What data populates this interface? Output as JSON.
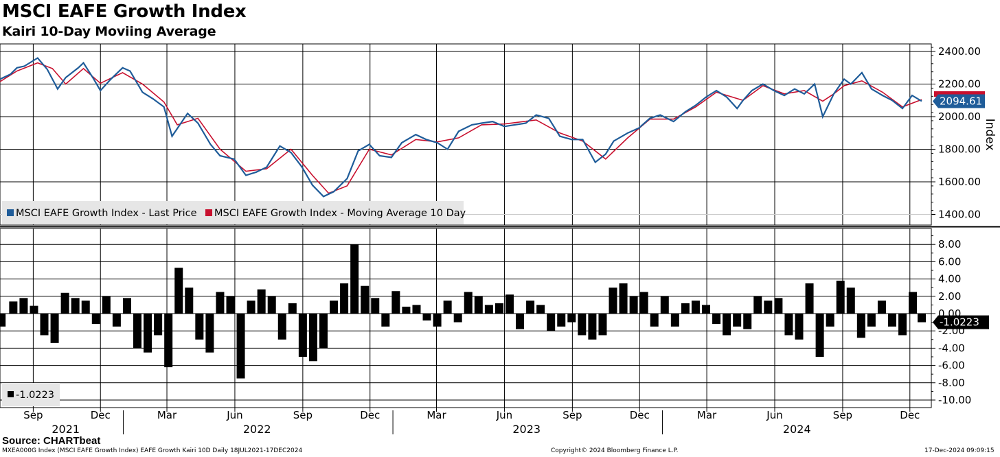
{
  "title": "MSCI EAFE Growth Index",
  "subtitle": "Kairi 10-Day Moviing Average",
  "source": "Source: CHARTbeat",
  "footer": {
    "left": "MXEA000G Index (MSCI EAFE Growth Index) EAFE Growth Kairi 10D  Daily 18JUL2021-17DEC2024",
    "center": "Copyright© 2024 Bloomberg Finance L.P.",
    "right": "17-Dec-2024 09:09:15"
  },
  "colors": {
    "last_price": "#1f5c99",
    "moving_average": "#c8102e",
    "kairi": "#000000",
    "grid": "#000000"
  },
  "chart_data": [
    {
      "type": "line",
      "ylabel": "Index",
      "ylim": [
        1350,
        2450
      ],
      "y_ticks": [
        "2400.00",
        "2200.00",
        "2000.00",
        "1800.00",
        "1600.00",
        "1400.00"
      ],
      "last_value_label": "2094.61",
      "legend_position": "bottom-left",
      "series": [
        {
          "name": "MSCI EAFE Growth Index - Last Price",
          "x": [
            "2021-07-18",
            "2021-08-01",
            "2021-08-10",
            "2021-08-20",
            "2021-09-07",
            "2021-09-20",
            "2021-10-04",
            "2021-10-15",
            "2021-11-01",
            "2021-11-08",
            "2021-11-22",
            "2021-12-01",
            "2021-12-15",
            "2021-12-31",
            "2022-01-10",
            "2022-01-27",
            "2022-02-10",
            "2022-02-25",
            "2022-03-08",
            "2022-03-29",
            "2022-04-12",
            "2022-04-29",
            "2022-05-12",
            "2022-05-31",
            "2022-06-16",
            "2022-06-30",
            "2022-07-14",
            "2022-08-01",
            "2022-08-16",
            "2022-08-31",
            "2022-09-14",
            "2022-09-29",
            "2022-10-13",
            "2022-10-31",
            "2022-11-15",
            "2022-11-30",
            "2022-12-14",
            "2022-12-30",
            "2023-01-13",
            "2023-02-01",
            "2023-02-15",
            "2023-03-02",
            "2023-03-16",
            "2023-03-31",
            "2023-04-18",
            "2023-05-01",
            "2023-05-16",
            "2023-06-01",
            "2023-06-15",
            "2023-06-30",
            "2023-07-14",
            "2023-07-31",
            "2023-08-15",
            "2023-08-31",
            "2023-09-15",
            "2023-10-02",
            "2023-10-16",
            "2023-10-27",
            "2023-11-15",
            "2023-11-30",
            "2023-12-15",
            "2023-12-29",
            "2024-01-16",
            "2024-02-01",
            "2024-02-15",
            "2024-02-29",
            "2024-03-14",
            "2024-03-28",
            "2024-04-11",
            "2024-04-19",
            "2024-05-01",
            "2024-05-16",
            "2024-05-31",
            "2024-06-14",
            "2024-06-28",
            "2024-07-11",
            "2024-07-25",
            "2024-08-05",
            "2024-08-20",
            "2024-09-03",
            "2024-09-12",
            "2024-09-27",
            "2024-10-10",
            "2024-10-25",
            "2024-11-07",
            "2024-11-21",
            "2024-12-04",
            "2024-12-17"
          ],
          "values": [
            2230,
            2260,
            2300,
            2310,
            2360,
            2290,
            2170,
            2240,
            2300,
            2330,
            2230,
            2160,
            2230,
            2300,
            2280,
            2150,
            2110,
            2060,
            1880,
            2020,
            1960,
            1830,
            1760,
            1740,
            1640,
            1660,
            1690,
            1820,
            1780,
            1690,
            1580,
            1510,
            1540,
            1620,
            1790,
            1830,
            1760,
            1750,
            1840,
            1890,
            1860,
            1840,
            1800,
            1910,
            1950,
            1960,
            1970,
            1940,
            1950,
            1960,
            2010,
            1990,
            1880,
            1860,
            1860,
            1720,
            1770,
            1850,
            1900,
            1930,
            1990,
            2010,
            1970,
            2030,
            2070,
            2120,
            2160,
            2120,
            2050,
            2100,
            2160,
            2200,
            2160,
            2130,
            2170,
            2140,
            2200,
            2000,
            2140,
            2230,
            2200,
            2270,
            2170,
            2130,
            2100,
            2050,
            2130,
            2095
          ]
        },
        {
          "name": "MSCI EAFE Growth Index - Moving Average 10 Day",
          "x": [
            "2021-07-18",
            "2021-08-10",
            "2021-09-07",
            "2021-09-27",
            "2021-10-15",
            "2021-11-08",
            "2021-12-01",
            "2021-12-31",
            "2022-01-27",
            "2022-02-25",
            "2022-03-15",
            "2022-04-12",
            "2022-05-12",
            "2022-06-16",
            "2022-07-14",
            "2022-08-16",
            "2022-09-14",
            "2022-10-06",
            "2022-10-31",
            "2022-11-30",
            "2022-12-30",
            "2023-02-01",
            "2023-03-02",
            "2023-03-31",
            "2023-05-01",
            "2023-06-01",
            "2023-07-14",
            "2023-08-15",
            "2023-09-15",
            "2023-10-16",
            "2023-11-15",
            "2023-12-15",
            "2024-01-16",
            "2024-02-15",
            "2024-03-14",
            "2024-04-19",
            "2024-05-16",
            "2024-06-14",
            "2024-07-11",
            "2024-08-05",
            "2024-08-20",
            "2024-09-03",
            "2024-09-27",
            "2024-10-25",
            "2024-11-21",
            "2024-12-17"
          ],
          "values": [
            2215,
            2280,
            2330,
            2295,
            2200,
            2295,
            2205,
            2270,
            2200,
            2090,
            1950,
            1990,
            1800,
            1665,
            1680,
            1800,
            1640,
            1530,
            1575,
            1800,
            1765,
            1860,
            1845,
            1870,
            1950,
            1955,
            1980,
            1900,
            1850,
            1740,
            1870,
            1985,
            1985,
            2060,
            2150,
            2100,
            2190,
            2140,
            2160,
            2095,
            2140,
            2190,
            2220,
            2150,
            2060,
            2105
          ]
        }
      ]
    },
    {
      "type": "bar",
      "ylim": [
        -11,
        9
      ],
      "y_ticks": [
        "8.00",
        "6.00",
        "4.00",
        "2.00",
        "0.00",
        "-2.00",
        "-4.00",
        "-6.00",
        "-8.00",
        "-10.00"
      ],
      "last_value_label": "-1.0223",
      "legend": "-1.0223",
      "series": [
        {
          "name": "Kairi 10D",
          "x": [
            "2021-07-20",
            "2021-08-05",
            "2021-08-19",
            "2021-09-02",
            "2021-09-16",
            "2021-09-30",
            "2021-10-14",
            "2021-10-28",
            "2021-11-11",
            "2021-11-25",
            "2021-12-09",
            "2021-12-23",
            "2022-01-06",
            "2022-01-20",
            "2022-02-03",
            "2022-02-17",
            "2022-03-03",
            "2022-03-17",
            "2022-03-31",
            "2022-04-14",
            "2022-04-28",
            "2022-05-12",
            "2022-05-26",
            "2022-06-09",
            "2022-06-23",
            "2022-07-07",
            "2022-07-21",
            "2022-08-04",
            "2022-08-18",
            "2022-09-01",
            "2022-09-15",
            "2022-09-29",
            "2022-10-13",
            "2022-10-27",
            "2022-11-10",
            "2022-11-24",
            "2022-12-08",
            "2022-12-22",
            "2023-01-05",
            "2023-01-19",
            "2023-02-02",
            "2023-02-16",
            "2023-03-02",
            "2023-03-16",
            "2023-03-30",
            "2023-04-13",
            "2023-04-27",
            "2023-05-11",
            "2023-05-25",
            "2023-06-08",
            "2023-06-22",
            "2023-07-06",
            "2023-07-20",
            "2023-08-03",
            "2023-08-17",
            "2023-08-31",
            "2023-09-14",
            "2023-09-28",
            "2023-10-12",
            "2023-10-26",
            "2023-11-09",
            "2023-11-23",
            "2023-12-07",
            "2023-12-21",
            "2024-01-04",
            "2024-01-18",
            "2024-02-01",
            "2024-02-15",
            "2024-02-29",
            "2024-03-14",
            "2024-03-28",
            "2024-04-11",
            "2024-04-25",
            "2024-05-09",
            "2024-05-23",
            "2024-06-06",
            "2024-06-20",
            "2024-07-04",
            "2024-07-18",
            "2024-08-01",
            "2024-08-15",
            "2024-08-29",
            "2024-09-12",
            "2024-09-26",
            "2024-10-10",
            "2024-10-24",
            "2024-11-07",
            "2024-11-21",
            "2024-12-05",
            "2024-12-17"
          ],
          "values": [
            -1.5,
            1.4,
            1.8,
            0.9,
            -2.5,
            -3.4,
            2.4,
            1.8,
            1.5,
            -1.2,
            2.0,
            -1.5,
            1.8,
            -4.0,
            -4.5,
            -2.5,
            -6.2,
            5.3,
            3.0,
            -3.0,
            -4.5,
            2.5,
            2.0,
            -7.5,
            1.5,
            2.8,
            2.0,
            -3.0,
            1.2,
            -5.0,
            -5.5,
            -4.0,
            1.5,
            3.5,
            8.0,
            3.2,
            1.8,
            -1.5,
            2.6,
            0.8,
            1.0,
            -0.8,
            -1.5,
            1.5,
            -1.0,
            2.5,
            2.0,
            1.0,
            1.2,
            2.2,
            -1.8,
            1.5,
            1.0,
            -2.0,
            -1.5,
            -1.0,
            -2.5,
            -3.0,
            -2.5,
            3.0,
            3.5,
            2.0,
            2.5,
            -1.5,
            2.0,
            -1.5,
            1.2,
            1.5,
            1.0,
            -1.2,
            -2.5,
            -1.5,
            -1.8,
            2.0,
            1.5,
            1.8,
            -2.5,
            -3.0,
            3.5,
            -5.0,
            -1.5,
            3.8,
            3.0,
            -2.8,
            -1.5,
            1.5,
            -1.5,
            -2.5,
            2.5,
            -1.0
          ]
        }
      ]
    }
  ],
  "x_axis": {
    "months": [
      {
        "date": "2021-09-01",
        "label": "Sep"
      },
      {
        "date": "2021-12-01",
        "label": "Dec"
      },
      {
        "date": "2022-03-01",
        "label": "Mar"
      },
      {
        "date": "2022-06-01",
        "label": "Jun"
      },
      {
        "date": "2022-09-01",
        "label": "Sep"
      },
      {
        "date": "2022-12-01",
        "label": "Dec"
      },
      {
        "date": "2023-03-01",
        "label": "Mar"
      },
      {
        "date": "2023-06-01",
        "label": "Jun"
      },
      {
        "date": "2023-09-01",
        "label": "Sep"
      },
      {
        "date": "2023-12-01",
        "label": "Dec"
      },
      {
        "date": "2024-03-01",
        "label": "Mar"
      },
      {
        "date": "2024-06-01",
        "label": "Jun"
      },
      {
        "date": "2024-09-01",
        "label": "Sep"
      },
      {
        "date": "2024-12-01",
        "label": "Dec"
      }
    ],
    "years": [
      {
        "date": "2021-10-15",
        "label": "2021"
      },
      {
        "date": "2022-07-01",
        "label": "2022"
      },
      {
        "date": "2023-07-01",
        "label": "2023"
      },
      {
        "date": "2024-07-01",
        "label": "2024"
      }
    ],
    "year_boundaries": [
      "2022-01-01",
      "2023-01-01",
      "2024-01-01"
    ]
  }
}
